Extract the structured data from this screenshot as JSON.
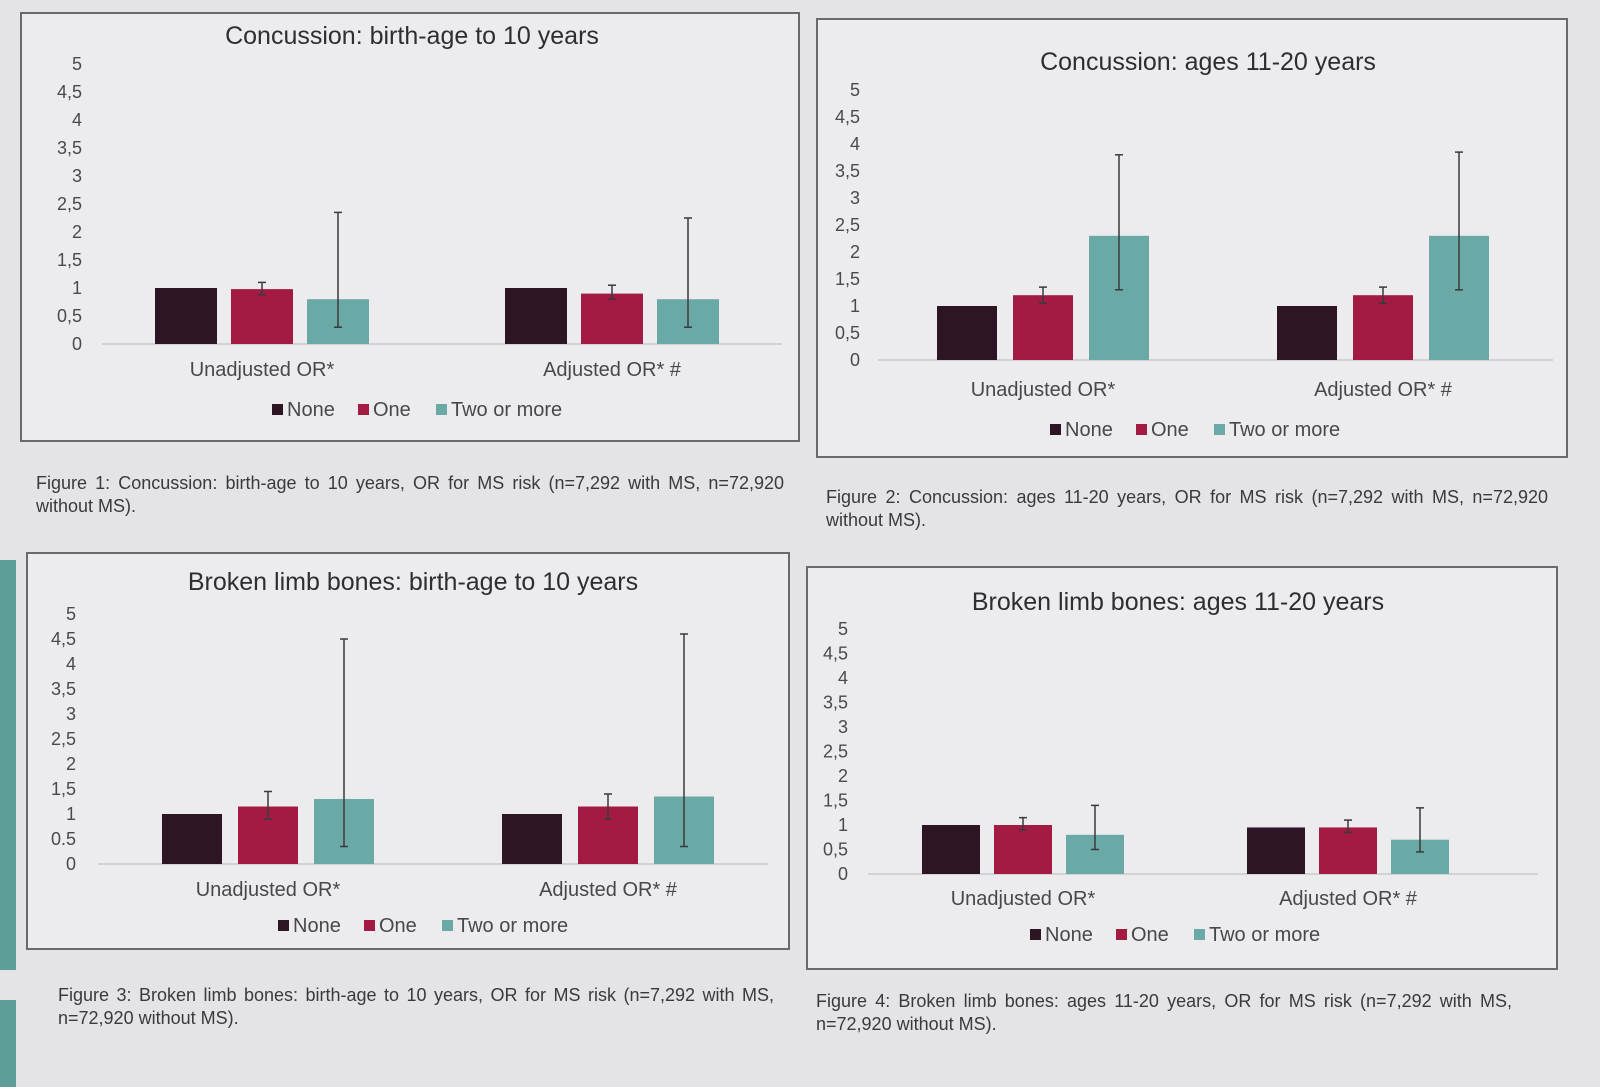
{
  "colors": {
    "none": "#2e1523",
    "one": "#a31a42",
    "two_or_more": "#6aa9a6"
  },
  "legend": [
    "None",
    "One",
    "Two or more"
  ],
  "captions": [
    "Figure 1: Concussion: birth-age to 10 years, OR for MS risk (n=7,292 with MS, n=72,920 without MS).",
    "Figure 2: Concussion: ages 11-20 years, OR for MS risk (n=7,292 with MS, n=72,920 without MS).",
    "Figure 3: Broken limb bones: birth-age to 10 years, OR for MS risk (n=7,292 with MS, n=72,920 without MS).",
    "Figure 4: Broken limb bones: ages 11-20 years, OR for MS risk (n=7,292 with MS, n=72,920 without MS)."
  ],
  "chart_data": [
    {
      "type": "bar",
      "title": "Concussion: birth-age to 10 years",
      "categories": [
        "Unadjusted OR*",
        "Adjusted OR* #"
      ],
      "ylim": [
        0,
        5
      ],
      "yticks": [
        "0",
        "0,5",
        "1",
        "1,5",
        "2",
        "2,5",
        "3",
        "3,5",
        "4",
        "4,5",
        "5"
      ],
      "legend_position": "bottom",
      "series": [
        {
          "name": "None",
          "values": [
            1.0,
            1.0
          ],
          "error_high": [
            null,
            null
          ],
          "error_low": [
            null,
            null
          ]
        },
        {
          "name": "One",
          "values": [
            0.98,
            0.9
          ],
          "error_high": [
            1.1,
            1.05
          ],
          "error_low": [
            0.88,
            0.8
          ]
        },
        {
          "name": "Two or more",
          "values": [
            0.8,
            0.8
          ],
          "error_high": [
            2.35,
            2.25
          ],
          "error_low": [
            0.3,
            0.3
          ]
        }
      ]
    },
    {
      "type": "bar",
      "title": "Concussion: ages 11-20 years",
      "categories": [
        "Unadjusted OR*",
        "Adjusted OR* #"
      ],
      "ylim": [
        0,
        5
      ],
      "yticks": [
        "0",
        "0,5",
        "1",
        "1,5",
        "2",
        "2,5",
        "3",
        "3,5",
        "4",
        "4,5",
        "5"
      ],
      "legend_position": "bottom",
      "series": [
        {
          "name": "None",
          "values": [
            1.0,
            1.0
          ],
          "error_high": [
            null,
            null
          ],
          "error_low": [
            null,
            null
          ]
        },
        {
          "name": "One",
          "values": [
            1.2,
            1.2
          ],
          "error_high": [
            1.35,
            1.35
          ],
          "error_low": [
            1.05,
            1.05
          ]
        },
        {
          "name": "Two or more",
          "values": [
            2.3,
            2.3
          ],
          "error_high": [
            3.8,
            3.85
          ],
          "error_low": [
            1.3,
            1.3
          ]
        }
      ]
    },
    {
      "type": "bar",
      "title": "Broken limb bones: birth-age to 10 years",
      "categories": [
        "Unadjusted OR*",
        "Adjusted OR* #"
      ],
      "ylim": [
        0,
        5
      ],
      "yticks": [
        "0",
        "0.5",
        "1",
        "1,5",
        "2",
        "2,5",
        "3",
        "3,5",
        "4",
        "4,5",
        "5"
      ],
      "legend_position": "bottom",
      "series": [
        {
          "name": "None",
          "values": [
            1.0,
            1.0
          ],
          "error_high": [
            null,
            null
          ],
          "error_low": [
            null,
            null
          ]
        },
        {
          "name": "One",
          "values": [
            1.15,
            1.15
          ],
          "error_high": [
            1.45,
            1.4
          ],
          "error_low": [
            0.9,
            0.9
          ]
        },
        {
          "name": "Two or more",
          "values": [
            1.3,
            1.35
          ],
          "error_high": [
            4.5,
            4.6
          ],
          "error_low": [
            0.35,
            0.35
          ]
        }
      ]
    },
    {
      "type": "bar",
      "title": "Broken limb bones: ages 11-20 years",
      "categories": [
        "Unadjusted OR*",
        "Adjusted OR* #"
      ],
      "ylim": [
        0,
        5
      ],
      "yticks": [
        "0",
        "0,5",
        "1",
        "1,5",
        "2",
        "2,5",
        "3",
        "3,5",
        "4",
        "4,5",
        "5"
      ],
      "legend_position": "bottom",
      "series": [
        {
          "name": "None",
          "values": [
            1.0,
            0.95
          ],
          "error_high": [
            null,
            null
          ],
          "error_low": [
            null,
            null
          ]
        },
        {
          "name": "One",
          "values": [
            1.0,
            0.95
          ],
          "error_high": [
            1.15,
            1.1
          ],
          "error_low": [
            0.9,
            0.85
          ]
        },
        {
          "name": "Two or more",
          "values": [
            0.8,
            0.7
          ],
          "error_high": [
            1.4,
            1.35
          ],
          "error_low": [
            0.5,
            0.45
          ]
        }
      ]
    }
  ]
}
